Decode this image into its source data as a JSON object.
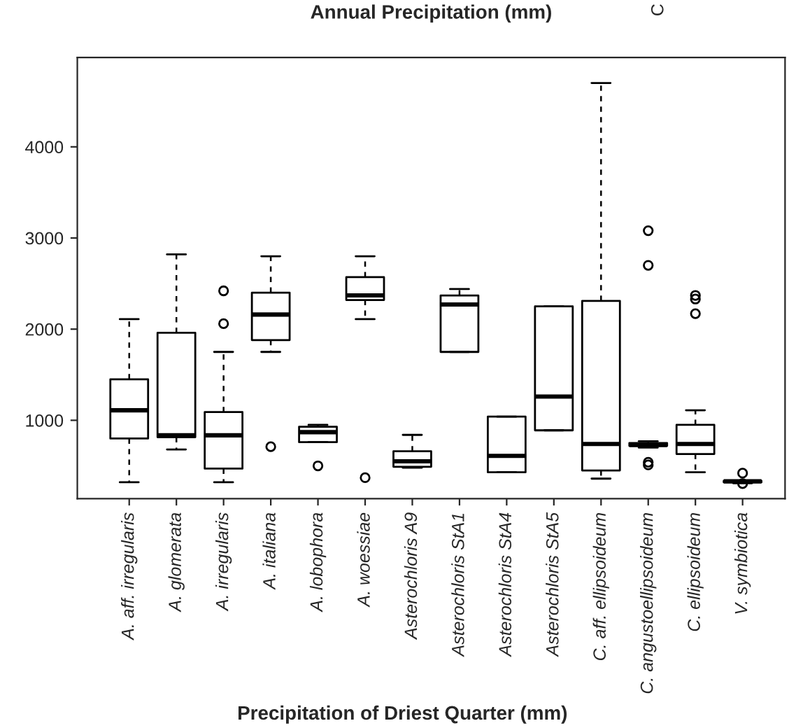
{
  "chart_data": {
    "type": "box",
    "title": "Annual Precipitation (mm)",
    "categories": [
      "A. aff. irregularis",
      "A. glomerata",
      "A. irregularis",
      "A. italiana",
      "A. lobophora",
      "A. woessiae",
      "Asterochloris A9",
      "Asterochloris StA1",
      "Asterochloris StA4",
      "Asterochloris StA5",
      "C. aff. ellipsoideum",
      "C. angustoellipsoideum",
      "C. ellipsoideum",
      "V. symbiotica"
    ],
    "boxes": [
      {
        "low": 320,
        "q1": 800,
        "median": 1110,
        "q3": 1450,
        "high": 2110
      },
      {
        "low": 680,
        "q1": 815,
        "median": 835,
        "q3": 1960,
        "high": 2820
      },
      {
        "low": 320,
        "q1": 470,
        "median": 835,
        "q3": 1090,
        "high": 1750,
        "outliers": [
          2060,
          2420
        ]
      },
      {
        "low": 1750,
        "q1": 1880,
        "median": 2160,
        "q3": 2400,
        "high": 2800,
        "outliers": [
          710
        ]
      },
      {
        "low": 760,
        "q1": 760,
        "median": 870,
        "q3": 930,
        "high": 950,
        "outliers": [
          500
        ]
      },
      {
        "low": 2110,
        "q1": 2320,
        "median": 2370,
        "q3": 2570,
        "high": 2800,
        "outliers": [
          370
        ]
      },
      {
        "low": 480,
        "q1": 490,
        "median": 550,
        "q3": 660,
        "high": 840
      },
      {
        "low": 1750,
        "q1": 1750,
        "median": 2270,
        "q3": 2370,
        "high": 2440
      },
      {
        "low": 430,
        "q1": 430,
        "median": 610,
        "q3": 1040,
        "high": 1040
      },
      {
        "low": 890,
        "q1": 890,
        "median": 1260,
        "q3": 2250,
        "high": 2250
      },
      {
        "low": 360,
        "q1": 450,
        "median": 740,
        "q3": 2310,
        "high": 4700
      },
      {
        "low": 700,
        "q1": 720,
        "median": 730,
        "q3": 750,
        "high": 770,
        "outliers": [
          510,
          540,
          2700,
          3080
        ]
      },
      {
        "low": 430,
        "q1": 630,
        "median": 740,
        "q3": 950,
        "high": 1110,
        "outliers": [
          2170,
          2330,
          2370
        ]
      },
      {
        "low": 310,
        "q1": 320,
        "median": 330,
        "q3": 335,
        "high": 340,
        "outliers": [
          305,
          420
        ]
      }
    ],
    "ylim": [
      140,
      4980
    ],
    "yticks": [
      1000,
      2000,
      3000,
      4000
    ],
    "annotations": [
      "Precipitation of Driest Quarter (mm)",
      "C"
    ]
  }
}
